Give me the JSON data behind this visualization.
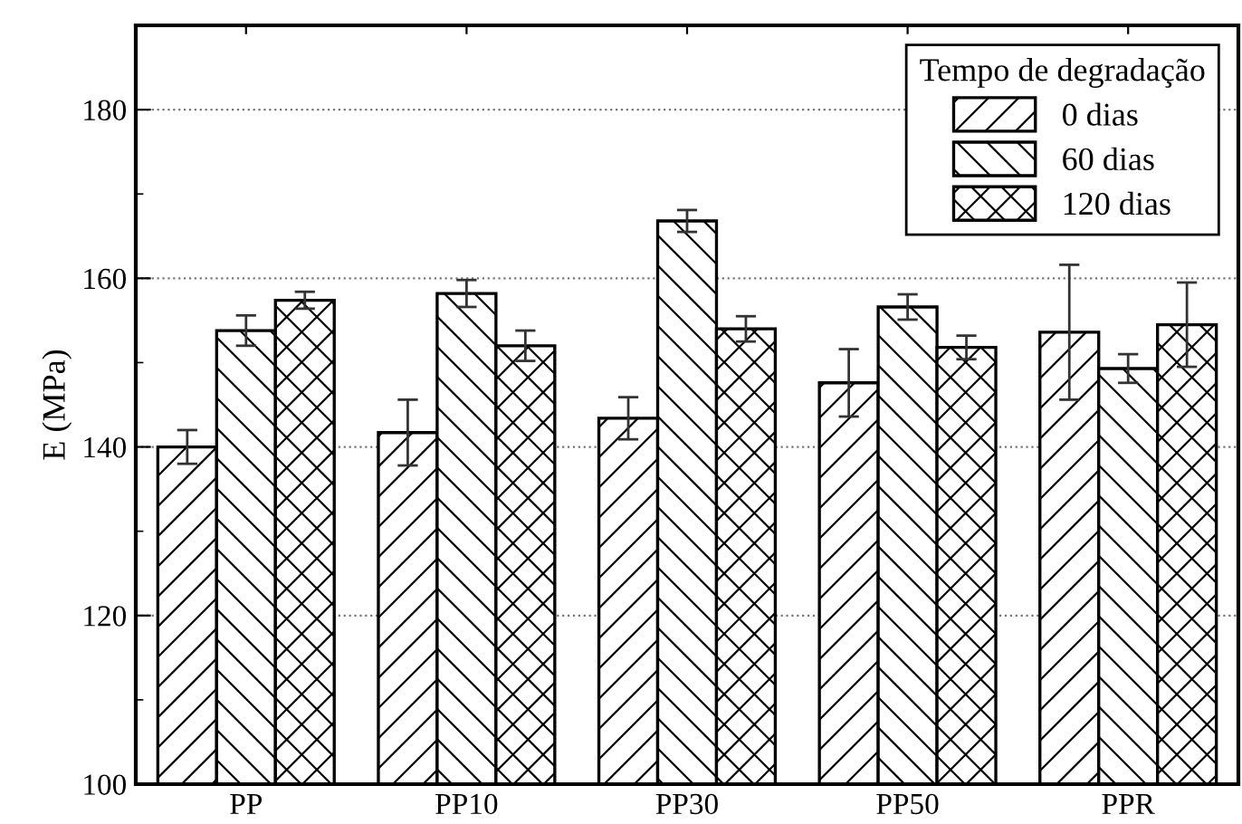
{
  "chart_data": {
    "type": "bar",
    "ylabel": "E (MPa)",
    "legend_title": "Tempo de degradação",
    "legend": "top right",
    "grid": "y",
    "categories": [
      "PP",
      "PP10",
      "PP30",
      "PP50",
      "PPR"
    ],
    "series": [
      {
        "name": "0 dias",
        "color": "#000000",
        "values": [
          140,
          141.7,
          143.4,
          147.6,
          153.6
        ],
        "errors": [
          2,
          3.9,
          2.5,
          4,
          8
        ]
      },
      {
        "name": "60 dias",
        "color": "#000000",
        "values": [
          153.8,
          158.2,
          166.8,
          156.6,
          149.3
        ],
        "errors": [
          1.8,
          1.6,
          1.3,
          1.5,
          1.7
        ]
      },
      {
        "name": "120 dias",
        "color": "#000000",
        "values": [
          157.4,
          152,
          154,
          151.8,
          154.5
        ],
        "errors": [
          1,
          1.8,
          1.5,
          1.4,
          5
        ]
      }
    ],
    "ylim": [
      100,
      190
    ],
    "yticks": [
      100,
      {
        "value": 110,
        "label": null
      },
      120,
      {
        "value": 130,
        "label": null
      },
      140,
      {
        "value": 150,
        "label": null
      },
      160,
      {
        "value": 170,
        "label": null
      },
      180
    ]
  }
}
